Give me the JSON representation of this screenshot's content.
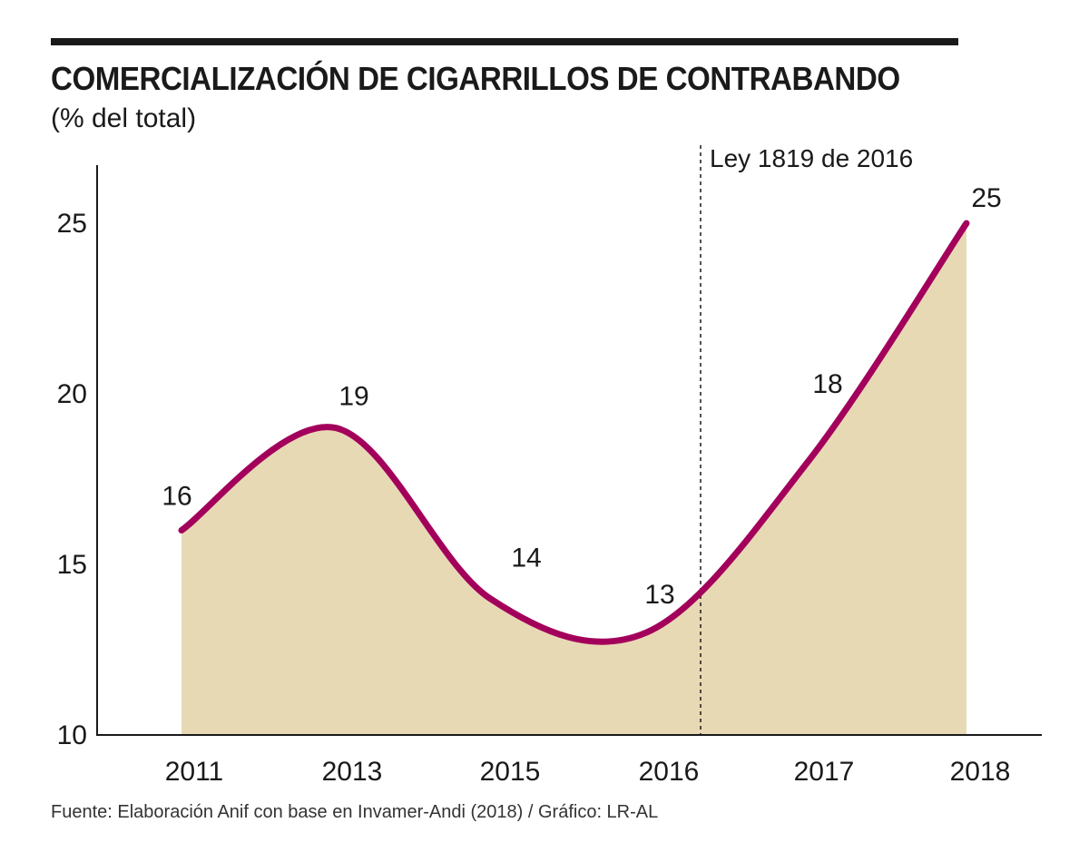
{
  "chart_data": {
    "type": "area",
    "title": "COMERCIALIZACIÓN DE CIGARRILLOS DE CONTRABANDO",
    "subtitle": "(% del total)",
    "categories": [
      "2011",
      "2013",
      "2015",
      "2016",
      "2017",
      "2018"
    ],
    "values": [
      16,
      19,
      14,
      13,
      18,
      25
    ],
    "data_labels": [
      "16",
      "19",
      "14",
      "13",
      "18",
      "25"
    ],
    "ylim": [
      10,
      26
    ],
    "yticks": [
      10,
      15,
      20,
      25
    ],
    "ytick_labels": [
      "10",
      "15",
      "20",
      "25"
    ],
    "xlabel": "",
    "ylabel": "",
    "annotation": {
      "label": "Ley 1819 de 2016",
      "x_between": [
        "2016",
        "2017"
      ],
      "style": "dashed-vertical"
    },
    "colors": {
      "line": "#a3005c",
      "fill": "#e8d9b5",
      "axis": "#1a1a1a"
    },
    "grid": false,
    "legend": "none"
  },
  "source": "Fuente: Elaboración Anif con base en Invamer-Andi (2018) / Gráfico: LR-AL"
}
